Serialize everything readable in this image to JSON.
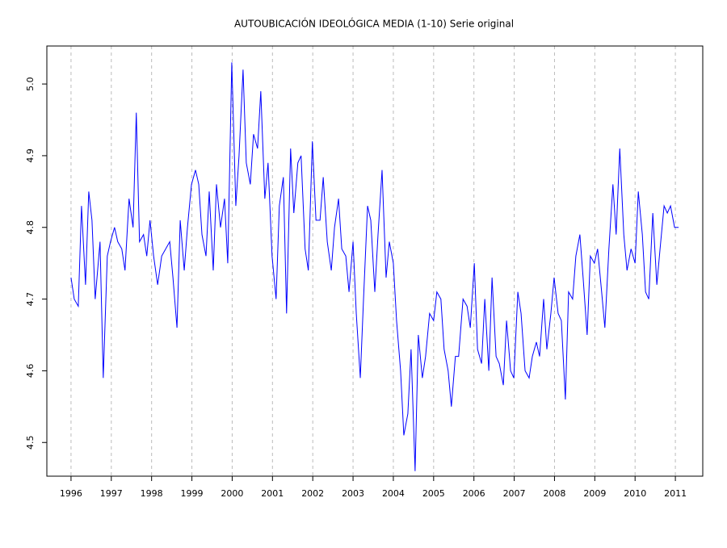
{
  "chart_data": {
    "type": "line",
    "title": "AUTOUBICACIÓN IDEOLÓGICA MEDIA (1-10) Serie original",
    "x": [
      1996.0,
      1996.08,
      1996.18,
      1996.26,
      1996.36,
      1996.44,
      1996.52,
      1996.6,
      1996.72,
      1996.8,
      1996.9,
      1996.98,
      1997.08,
      1997.16,
      1997.26,
      1997.34,
      1997.44,
      1997.54,
      1997.62,
      1997.7,
      1997.8,
      1997.88,
      1997.96,
      1998.05,
      1998.15,
      1998.25,
      1998.35,
      1998.45,
      1998.53,
      1998.63,
      1998.71,
      1998.81,
      1998.89,
      1998.99,
      1999.09,
      1999.17,
      1999.25,
      1999.35,
      1999.43,
      1999.53,
      1999.61,
      1999.71,
      1999.81,
      1999.89,
      1999.99,
      2000.09,
      2000.17,
      2000.27,
      2000.35,
      2000.45,
      2000.53,
      2000.63,
      2000.71,
      2000.81,
      2000.89,
      2000.99,
      2001.09,
      2001.17,
      2001.27,
      2001.35,
      2001.45,
      2001.53,
      2001.63,
      2001.71,
      2001.81,
      2001.89,
      2001.99,
      2002.08,
      2002.18,
      2002.26,
      2002.36,
      2002.46,
      2002.54,
      2002.64,
      2002.72,
      2002.82,
      2002.9,
      2003.0,
      2003.08,
      2003.18,
      2003.26,
      2003.36,
      2003.44,
      2003.54,
      2003.62,
      2003.72,
      2003.82,
      2003.9,
      2004.0,
      2004.08,
      2004.18,
      2004.26,
      2004.36,
      2004.44,
      2004.54,
      2004.62,
      2004.72,
      2004.8,
      2004.9,
      2005.0,
      2005.08,
      2005.18,
      2005.26,
      2005.36,
      2005.44,
      2005.54,
      2005.62,
      2005.73,
      2005.83,
      2005.91,
      2006.01,
      2006.09,
      2006.19,
      2006.27,
      2006.37,
      2006.45,
      2006.55,
      2006.63,
      2006.73,
      2006.81,
      2006.91,
      2006.99,
      2007.09,
      2007.17,
      2007.27,
      2007.37,
      2007.45,
      2007.55,
      2007.63,
      2007.73,
      2007.81,
      2007.91,
      2007.99,
      2008.09,
      2008.17,
      2008.27,
      2008.35,
      2008.45,
      2008.53,
      2008.63,
      2008.71,
      2008.81,
      2008.89,
      2008.99,
      2009.07,
      2009.17,
      2009.25,
      2009.35,
      2009.45,
      2009.53,
      2009.62,
      2009.72,
      2009.8,
      2009.9,
      2010.0,
      2010.08,
      2010.18,
      2010.26,
      2010.34,
      2010.44,
      2010.54,
      2010.62,
      2010.72,
      2010.8,
      2010.88,
      2010.98,
      2011.08
    ],
    "series": [
      {
        "color": "#0000ff",
        "values": [
          4.73,
          4.7,
          4.69,
          4.83,
          4.72,
          4.85,
          4.81,
          4.7,
          4.78,
          4.59,
          4.76,
          4.78,
          4.8,
          4.78,
          4.77,
          4.74,
          4.84,
          4.8,
          4.96,
          4.78,
          4.79,
          4.76,
          4.81,
          4.76,
          4.72,
          4.76,
          4.77,
          4.78,
          4.73,
          4.66,
          4.81,
          4.74,
          4.8,
          4.86,
          4.88,
          4.86,
          4.79,
          4.76,
          4.85,
          4.74,
          4.86,
          4.8,
          4.84,
          4.75,
          5.03,
          4.83,
          4.9,
          5.02,
          4.89,
          4.86,
          4.93,
          4.91,
          4.99,
          4.84,
          4.89,
          4.76,
          4.7,
          4.83,
          4.87,
          4.68,
          4.91,
          4.82,
          4.89,
          4.9,
          4.77,
          4.74,
          4.92,
          4.81,
          4.81,
          4.87,
          4.78,
          4.74,
          4.8,
          4.84,
          4.77,
          4.76,
          4.71,
          4.78,
          4.68,
          4.59,
          4.7,
          4.83,
          4.81,
          4.71,
          4.79,
          4.88,
          4.73,
          4.78,
          4.75,
          4.67,
          4.6,
          4.51,
          4.54,
          4.63,
          4.46,
          4.65,
          4.59,
          4.62,
          4.68,
          4.67,
          4.71,
          4.7,
          4.63,
          4.6,
          4.55,
          4.62,
          4.62,
          4.7,
          4.69,
          4.66,
          4.75,
          4.63,
          4.61,
          4.7,
          4.6,
          4.73,
          4.62,
          4.61,
          4.58,
          4.67,
          4.6,
          4.59,
          4.71,
          4.68,
          4.6,
          4.59,
          4.62,
          4.64,
          4.62,
          4.7,
          4.63,
          4.68,
          4.73,
          4.68,
          4.67,
          4.56,
          4.71,
          4.7,
          4.76,
          4.79,
          4.73,
          4.65,
          4.76,
          4.75,
          4.77,
          4.71,
          4.66,
          4.77,
          4.86,
          4.79,
          4.91,
          4.79,
          4.74,
          4.77,
          4.75,
          4.85,
          4.79,
          4.71,
          4.7,
          4.82,
          4.72,
          4.77,
          4.83,
          4.82,
          4.83,
          4.8,
          4.8
        ]
      }
    ],
    "xlim": [
      1995.4,
      2011.68
    ],
    "ylim": [
      4.453,
      5.053
    ],
    "xticks": [
      1996,
      1997,
      1998,
      1999,
      2000,
      2001,
      2002,
      2003,
      2004,
      2005,
      2006,
      2007,
      2008,
      2009,
      2010,
      2011
    ],
    "yticks": [
      4.5,
      4.6,
      4.7,
      4.8,
      4.9,
      {
        "value": 5.0,
        "label": "5.0"
      }
    ],
    "grid": "x"
  }
}
